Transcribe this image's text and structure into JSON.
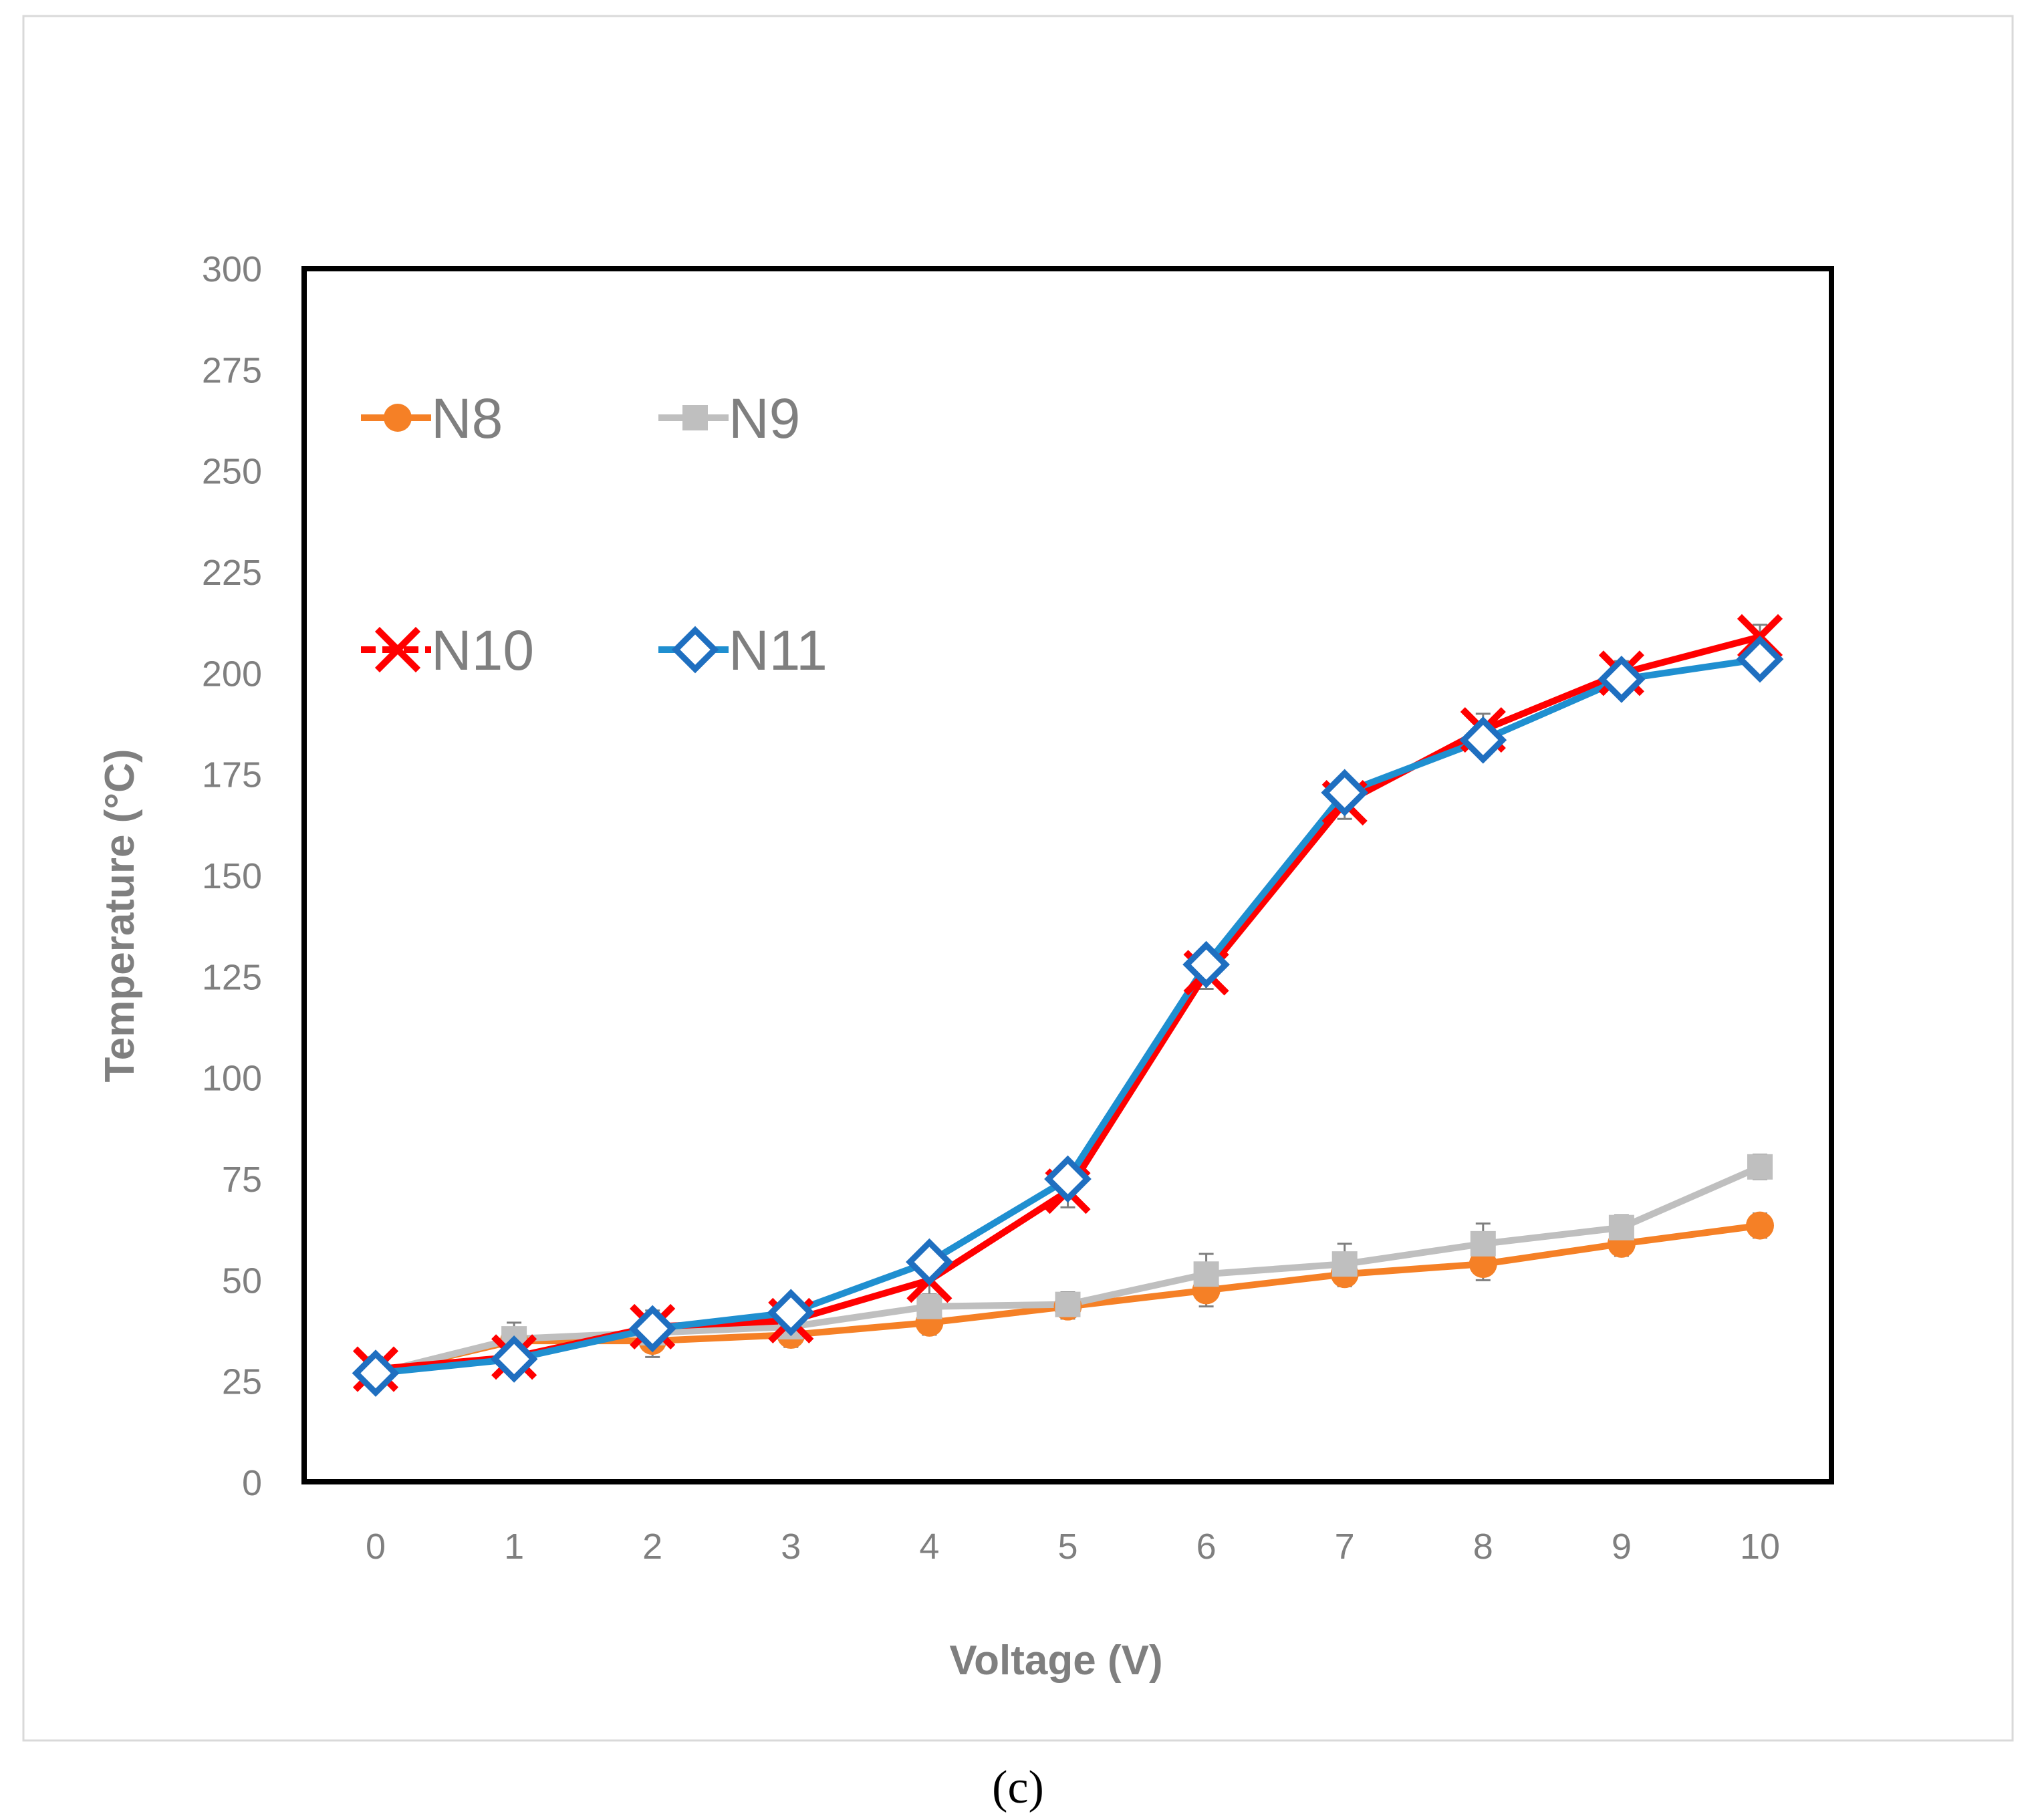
{
  "chart_data": {
    "type": "line",
    "title": "",
    "xlabel": "Voltage (V)",
    "ylabel": "Temperature (°C)",
    "caption": "(c)",
    "xlim": [
      0,
      10
    ],
    "ylim": [
      0,
      300
    ],
    "x": [
      0,
      1,
      2,
      3,
      4,
      5,
      6,
      7,
      8,
      9,
      10
    ],
    "x_ticks": [
      "0",
      "1",
      "2",
      "3",
      "4",
      "5",
      "6",
      "7",
      "8",
      "9",
      "10"
    ],
    "y_ticks": [
      "0",
      "25",
      "50",
      "75",
      "100",
      "125",
      "150",
      "175",
      "200",
      "225",
      "250",
      "275",
      "300"
    ],
    "legend_position": "top-left, two columns",
    "series": [
      {
        "name": "N8",
        "color": "#f58026",
        "marker": "circle",
        "values": [
          27,
          35,
          35,
          36.5,
          39.5,
          43.5,
          47.5,
          51.5,
          54,
          59,
          63.5
        ],
        "errors": [
          3,
          3,
          4,
          3,
          3,
          3,
          4,
          3,
          4,
          3,
          3
        ]
      },
      {
        "name": "N9",
        "color": "#bfbfbf",
        "marker": "square",
        "values": [
          27,
          35.5,
          37,
          38.5,
          43.5,
          44,
          51.5,
          54,
          59,
          63,
          78
        ],
        "errors": [
          3,
          4,
          4,
          3,
          3,
          3,
          5,
          5,
          5,
          3,
          3
        ]
      },
      {
        "name": "N10",
        "color": "#ff0000",
        "marker": "x",
        "values": [
          28,
          31,
          38.5,
          40,
          50,
          72,
          126,
          168,
          186,
          200,
          209
        ],
        "errors": [
          3,
          3,
          4,
          3,
          4,
          4,
          4,
          4,
          4,
          3,
          3
        ]
      },
      {
        "name": "N11",
        "color": "#1f8fd0",
        "marker": "diamond",
        "values": [
          27,
          30.5,
          38,
          42,
          54.5,
          75,
          128,
          170.5,
          183.5,
          198.5,
          203.5
        ],
        "errors": [
          3,
          3,
          3,
          3,
          3,
          3,
          3,
          3,
          3,
          3,
          3
        ]
      }
    ]
  }
}
